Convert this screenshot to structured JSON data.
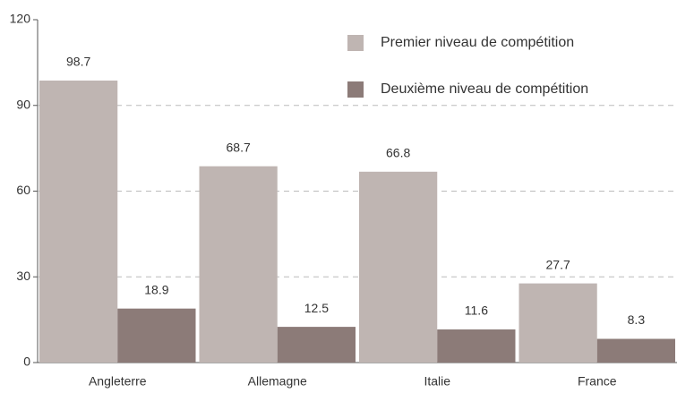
{
  "chart_data": {
    "type": "bar",
    "categories": [
      "Angleterre",
      "Allemagne",
      "Italie",
      "France"
    ],
    "series": [
      {
        "name": "Premier niveau de compétition",
        "color": "#bfb5b2",
        "values": [
          98.7,
          68.7,
          66.8,
          27.7
        ]
      },
      {
        "name": "Deuxième niveau de compétition",
        "color": "#8c7b78",
        "values": [
          18.9,
          12.5,
          11.6,
          8.3
        ]
      }
    ],
    "ylim": [
      0,
      120
    ],
    "yticks": [
      0,
      30,
      60,
      90,
      120
    ],
    "grid": true,
    "legend": "upper right"
  }
}
